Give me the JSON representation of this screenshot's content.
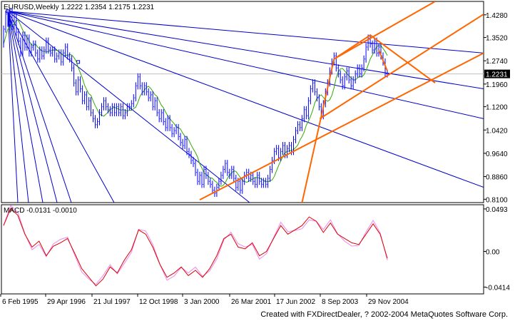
{
  "chart_data": [
    {
      "type": "line",
      "header": {
        "symbol": "EURUSD,Weekly",
        "open": "1.2222",
        "high": "1.2354",
        "low": "1.2175",
        "close": "1.2231"
      },
      "current_price": "1.2231",
      "y_ticks": [
        "1.4280",
        "1.3520",
        "1.2740",
        "1.1960",
        "1.1200",
        "1.0420",
        "0.9640",
        "0.8860",
        "0.8100"
      ],
      "ylim": [
        0.7988,
        1.4729
      ],
      "x_ticks": [
        "6 Feb 1995",
        "29 Apr 1996",
        "21 Jul 1997",
        "12 Oct 1998",
        "3 Jan 2000",
        "26 Mar 2001",
        "17 Jun 2002",
        "8 Sep 2003",
        "29 Nov 2004"
      ],
      "grid": false,
      "series": [
        {
          "values": [
            [
              0,
              1.33
            ],
            [
              3,
              1.38
            ],
            [
              6,
              1.43
            ],
            [
              9,
              1.4
            ],
            [
              12,
              1.44
            ],
            [
              15,
              1.39
            ],
            [
              18,
              1.42
            ],
            [
              21,
              1.37
            ],
            [
              24,
              1.34
            ],
            [
              27,
              1.3
            ],
            [
              30,
              1.36
            ],
            [
              33,
              1.32
            ],
            [
              36,
              1.35
            ],
            [
              39,
              1.3
            ],
            [
              42,
              1.32
            ],
            [
              45,
              1.33
            ],
            [
              48,
              1.3
            ],
            [
              51,
              1.28
            ],
            [
              54,
              1.31
            ],
            [
              57,
              1.29
            ],
            [
              60,
              1.31
            ],
            [
              63,
              1.34
            ],
            [
              66,
              1.31
            ],
            [
              69,
              1.3
            ],
            [
              72,
              1.31
            ],
            [
              75,
              1.28
            ],
            [
              78,
              1.29
            ],
            [
              81,
              1.3
            ],
            [
              84,
              1.27
            ],
            [
              87,
              1.3
            ],
            [
              90,
              1.32
            ],
            [
              93,
              1.29
            ],
            [
              96,
              1.28
            ],
            [
              99,
              1.25
            ],
            [
              102,
              1.2
            ],
            [
              105,
              1.17
            ],
            [
              108,
              1.21
            ],
            [
              111,
              1.18
            ],
            [
              114,
              1.14
            ],
            [
              117,
              1.16
            ],
            [
              120,
              1.12
            ],
            [
              123,
              1.14
            ],
            [
              126,
              1.1
            ],
            [
              129,
              1.08
            ],
            [
              132,
              1.06
            ],
            [
              135,
              1.07
            ],
            [
              138,
              1.1
            ],
            [
              141,
              1.12
            ],
            [
              144,
              1.14
            ],
            [
              147,
              1.12
            ],
            [
              150,
              1.11
            ],
            [
              153,
              1.1
            ],
            [
              156,
              1.12
            ],
            [
              159,
              1.1
            ],
            [
              162,
              1.12
            ],
            [
              165,
              1.1
            ],
            [
              168,
              1.12
            ],
            [
              171,
              1.09
            ],
            [
              174,
              1.1
            ],
            [
              177,
              1.12
            ],
            [
              180,
              1.12
            ],
            [
              183,
              1.13
            ],
            [
              186,
              1.15
            ],
            [
              189,
              1.19
            ],
            [
              192,
              1.22
            ],
            [
              195,
              1.19
            ],
            [
              198,
              1.17
            ],
            [
              201,
              1.19
            ],
            [
              204,
              1.17
            ],
            [
              207,
              1.15
            ],
            [
              210,
              1.16
            ],
            [
              213,
              1.12
            ],
            [
              216,
              1.14
            ],
            [
              219,
              1.1
            ],
            [
              222,
              1.08
            ],
            [
              225,
              1.1
            ],
            [
              228,
              1.07
            ],
            [
              231,
              1.05
            ],
            [
              234,
              1.08
            ],
            [
              237,
              1.05
            ],
            [
              240,
              1.03
            ],
            [
              243,
              1.04
            ],
            [
              246,
              1.05
            ],
            [
              249,
              1.02
            ],
            [
              252,
              1.0
            ],
            [
              255,
              0.99
            ],
            [
              258,
              1.01
            ],
            [
              261,
              0.97
            ],
            [
              264,
              0.96
            ],
            [
              267,
              0.94
            ],
            [
              270,
              0.93
            ],
            [
              273,
              0.9
            ],
            [
              276,
              0.87
            ],
            [
              279,
              0.89
            ],
            [
              282,
              0.86
            ],
            [
              285,
              0.91
            ],
            [
              288,
              0.89
            ],
            [
              291,
              0.87
            ],
            [
              294,
              0.86
            ],
            [
              297,
              0.84
            ],
            [
              300,
              0.83
            ],
            [
              303,
              0.85
            ],
            [
              306,
              0.87
            ],
            [
              309,
              0.89
            ],
            [
              312,
              0.91
            ],
            [
              315,
              0.93
            ],
            [
              318,
              0.9
            ],
            [
              321,
              0.89
            ],
            [
              324,
              0.91
            ],
            [
              327,
              0.88
            ],
            [
              330,
              0.85
            ],
            [
              333,
              0.87
            ],
            [
              336,
              0.84
            ],
            [
              339,
              0.87
            ],
            [
              342,
              0.89
            ],
            [
              345,
              0.9
            ],
            [
              348,
              0.88
            ],
            [
              351,
              0.89
            ],
            [
              354,
              0.87
            ],
            [
              357,
              0.86
            ],
            [
              360,
              0.89
            ],
            [
              363,
              0.87
            ],
            [
              366,
              0.86
            ],
            [
              369,
              0.87
            ],
            [
              372,
              0.86
            ],
            [
              375,
              0.88
            ],
            [
              378,
              0.91
            ],
            [
              381,
              0.94
            ],
            [
              384,
              0.97
            ],
            [
              387,
              0.98
            ],
            [
              390,
              0.95
            ],
            [
              393,
              0.97
            ],
            [
              396,
              0.99
            ],
            [
              399,
              0.96
            ],
            [
              402,
              0.98
            ],
            [
              405,
              0.99
            ],
            [
              408,
              0.97
            ],
            [
              411,
              1.01
            ],
            [
              414,
              1.04
            ],
            [
              417,
              1.06
            ],
            [
              420,
              1.05
            ],
            [
              423,
              1.08
            ],
            [
              426,
              1.11
            ],
            [
              429,
              1.09
            ],
            [
              432,
              1.14
            ],
            [
              435,
              1.18
            ],
            [
              438,
              1.2
            ],
            [
              441,
              1.17
            ],
            [
              444,
              1.15
            ],
            [
              447,
              1.12
            ],
            [
              450,
              1.09
            ],
            [
              453,
              1.13
            ],
            [
              456,
              1.17
            ],
            [
              459,
              1.2
            ],
            [
              462,
              1.24
            ],
            [
              465,
              1.27
            ],
            [
              468,
              1.29
            ],
            [
              471,
              1.25
            ],
            [
              474,
              1.23
            ],
            [
              477,
              1.21
            ],
            [
              480,
              1.19
            ],
            [
              483,
              1.22
            ],
            [
              486,
              1.24
            ],
            [
              489,
              1.21
            ],
            [
              492,
              1.19
            ],
            [
              495,
              1.21
            ],
            [
              498,
              1.23
            ],
            [
              501,
              1.25
            ],
            [
              504,
              1.23
            ],
            [
              507,
              1.25
            ],
            [
              510,
              1.28
            ],
            [
              513,
              1.32
            ],
            [
              516,
              1.35
            ],
            [
              519,
              1.33
            ],
            [
              522,
              1.31
            ],
            [
              525,
              1.34
            ],
            [
              528,
              1.3
            ],
            [
              531,
              1.32
            ],
            [
              534,
              1.29
            ],
            [
              537,
              1.27
            ],
            [
              540,
              1.23
            ]
          ]
        }
      ],
      "note": "series values are [bar index, price]"
    },
    {
      "type": "line",
      "title": "MACD",
      "values_label": "-0.0131 -0.0010",
      "y_ticks": [
        "0.0493",
        "0.00",
        "-0.0414"
      ],
      "ylim": [
        -0.0493,
        0.0542
      ],
      "series": [
        {
          "values": [
            [
              0,
              0.03
            ],
            [
              10,
              0.05
            ],
            [
              20,
              0.042
            ],
            [
              30,
              0.02
            ],
            [
              40,
              0.005
            ],
            [
              50,
              0.012
            ],
            [
              60,
              -0.005
            ],
            [
              70,
              0.006
            ],
            [
              80,
              0.01
            ],
            [
              90,
              0.015
            ],
            [
              100,
              -0.002
            ],
            [
              110,
              -0.02
            ],
            [
              120,
              -0.03
            ],
            [
              130,
              -0.04
            ],
            [
              140,
              -0.032
            ],
            [
              150,
              -0.018
            ],
            [
              160,
              -0.025
            ],
            [
              170,
              -0.01
            ],
            [
              180,
              0.002
            ],
            [
              190,
              0.025
            ],
            [
              200,
              0.02
            ],
            [
              210,
              0.005
            ],
            [
              220,
              -0.015
            ],
            [
              230,
              -0.03
            ],
            [
              240,
              -0.025
            ],
            [
              250,
              -0.018
            ],
            [
              260,
              -0.028
            ],
            [
              270,
              -0.022
            ],
            [
              280,
              -0.03
            ],
            [
              290,
              -0.02
            ],
            [
              300,
              -0.005
            ],
            [
              310,
              0.015
            ],
            [
              320,
              0.02
            ],
            [
              330,
              0.005
            ],
            [
              340,
              0.003
            ],
            [
              350,
              0.01
            ],
            [
              360,
              -0.005
            ],
            [
              370,
              0.0
            ],
            [
              380,
              0.015
            ],
            [
              390,
              0.03
            ],
            [
              400,
              0.02
            ],
            [
              410,
              0.025
            ],
            [
              420,
              0.03
            ],
            [
              430,
              0.04
            ],
            [
              440,
              0.035
            ],
            [
              450,
              0.022
            ],
            [
              460,
              0.033
            ],
            [
              470,
              0.02
            ],
            [
              480,
              0.015
            ],
            [
              490,
              0.01
            ],
            [
              500,
              0.008
            ],
            [
              510,
              0.02
            ],
            [
              520,
              0.032
            ],
            [
              530,
              0.02
            ],
            [
              540,
              -0.008
            ]
          ]
        }
      ]
    }
  ],
  "footer": {
    "text": "Created with FXDirectDealer, ? 2002-2004 MetaQuotes Software Corp."
  }
}
